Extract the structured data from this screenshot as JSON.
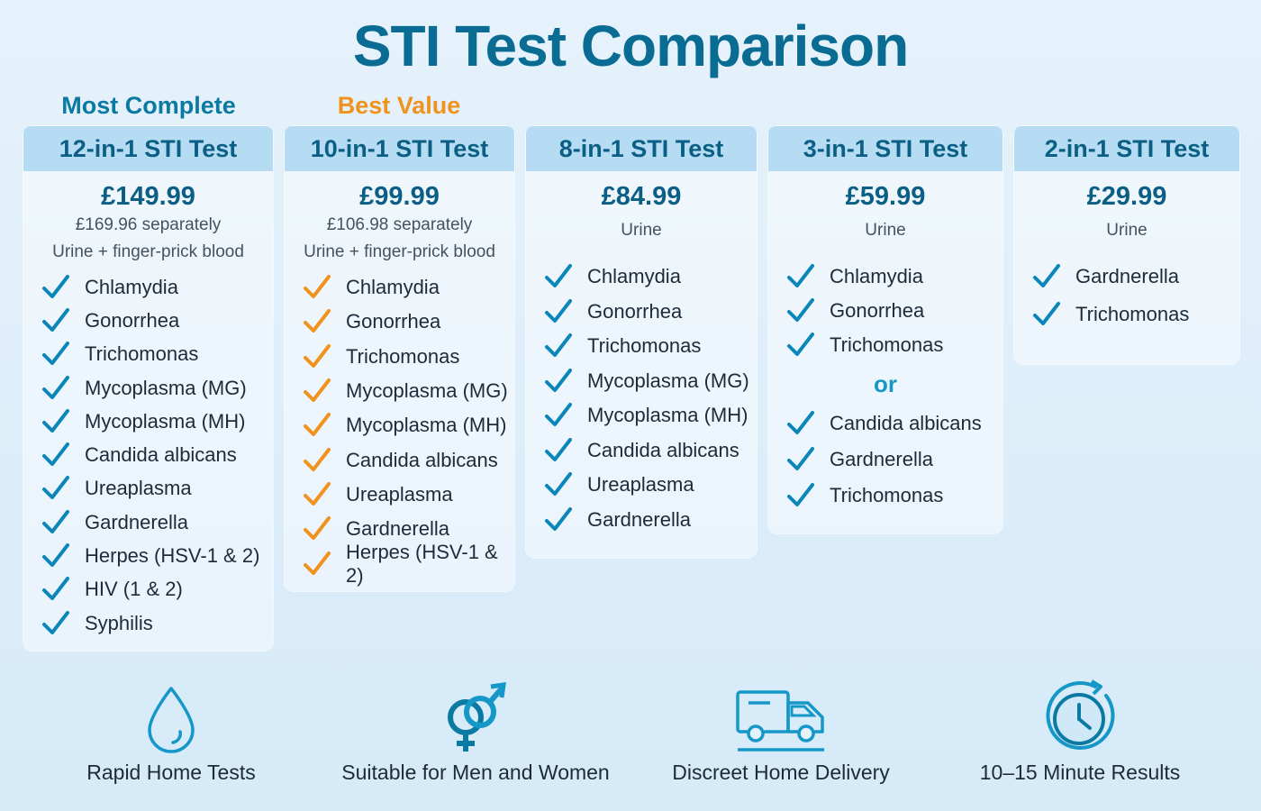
{
  "title": "STI Test Comparison",
  "ribbons": {
    "complete": "Most Complete",
    "value": "Best Value"
  },
  "colors": {
    "blue_check": "#0b86b8",
    "orange_check": "#f0921e",
    "header_bg": "#b6dcf3",
    "title": "#0a6c92"
  },
  "cards": [
    {
      "name": "12-in-1 STI Test",
      "price": "£149.99",
      "separately": "£169.96 separately",
      "sample": "Urine + finger-prick blood",
      "check_color": "blue",
      "items": [
        "Chlamydia",
        "Gonorrhea",
        "Trichomonas",
        "Mycoplasma (MG)",
        "Mycoplasma (MH)",
        "Candida albicans",
        "Ureaplasma",
        "Gardnerella",
        "Herpes (HSV-1 & 2)",
        "HIV (1 & 2)",
        "Syphilis"
      ]
    },
    {
      "name": "10-in-1 STI Test",
      "price": "£99.99",
      "separately": "£106.98 separately",
      "sample": "Urine + finger-prick blood",
      "check_color": "orange",
      "items": [
        "Chlamydia",
        "Gonorrhea",
        "Trichomonas",
        "Mycoplasma (MG)",
        "Mycoplasma (MH)",
        "Candida albicans",
        "Ureaplasma",
        "Gardnerella",
        "Herpes (HSV-1 & 2)"
      ]
    },
    {
      "name": "8-in-1 STI Test",
      "price": "£84.99",
      "sample": "Urine",
      "check_color": "blue",
      "items": [
        "Chlamydia",
        "Gonorrhea",
        "Trichomonas",
        "Mycoplasma (MG)",
        "Mycoplasma (MH)",
        "Candida albicans",
        "Ureaplasma",
        "Gardnerella"
      ]
    },
    {
      "name": "3-in-1 STI Test",
      "price": "£59.99",
      "sample": "Urine",
      "check_color": "blue",
      "items": [
        "Chlamydia",
        "Gonorrhea",
        "Trichomonas"
      ],
      "or_label": "or",
      "alt_items": [
        "Candida albicans",
        "Gardnerella",
        "Trichomonas"
      ]
    },
    {
      "name": "2-in-1 STI Test",
      "price": "£29.99",
      "sample": "Urine",
      "check_color": "blue",
      "items": [
        "Gardnerella",
        "Trichomonas"
      ]
    }
  ],
  "features": [
    {
      "icon": "water-drop-icon",
      "label": "Rapid Home Tests"
    },
    {
      "icon": "gender-symbols-icon",
      "label": "Suitable for Men and Women"
    },
    {
      "icon": "delivery-truck-icon",
      "label": "Discreet Home Delivery"
    },
    {
      "icon": "clock-icon",
      "label": "10–15 Minute Results"
    }
  ]
}
